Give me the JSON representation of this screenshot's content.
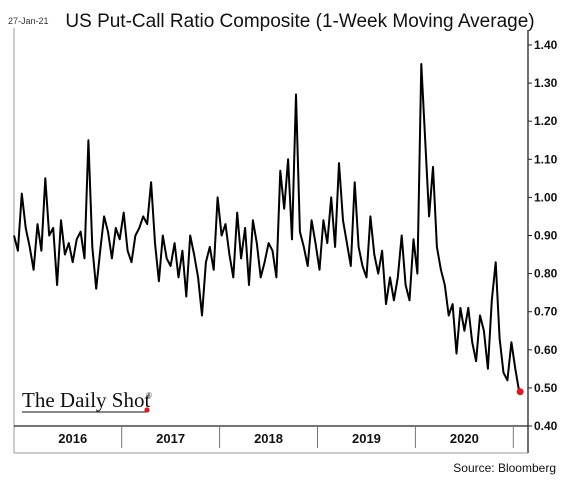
{
  "header": {
    "date": "27-Jan-21",
    "title": "US Put-Call Ratio Composite (1-Week Moving Average)"
  },
  "footer": {
    "source": "Source: Bloomberg"
  },
  "logo": {
    "text": "The Daily Shot",
    "mark": "®"
  },
  "colors": {
    "line": "#000000",
    "last_point": "#e8141c",
    "grid": "#999999"
  },
  "chart_data": {
    "type": "line",
    "title": "US Put-Call Ratio Composite (1-Week Moving Average)",
    "xlabel": "",
    "ylabel": "",
    "xlim": [
      2015.9,
      2021.15
    ],
    "ylim": [
      0.4,
      1.4
    ],
    "y_axis_side": "right",
    "grid": false,
    "yticks": [
      "1.40",
      "1.30",
      "1.20",
      "1.10",
      "1.00",
      "0.90",
      "0.80",
      "0.70",
      "0.60",
      "0.50",
      "0.40"
    ],
    "xticks": [
      {
        "label": "2016",
        "value": 2016
      },
      {
        "label": "2017",
        "value": 2017
      },
      {
        "label": "2018",
        "value": 2018
      },
      {
        "label": "2019",
        "value": 2019
      },
      {
        "label": "2020",
        "value": 2020
      }
    ],
    "series": [
      {
        "x": [
          2015.9,
          2015.94,
          2015.98,
          2016.02,
          2016.06,
          2016.1,
          2016.14,
          2016.18,
          2016.22,
          2016.26,
          2016.3,
          2016.34,
          2016.38,
          2016.42,
          2016.46,
          2016.5,
          2016.54,
          2016.58,
          2016.62,
          2016.66,
          2016.7,
          2016.74,
          2016.78,
          2016.82,
          2016.86,
          2016.9,
          2016.94,
          2016.98,
          2017.02,
          2017.06,
          2017.1,
          2017.14,
          2017.18,
          2017.22,
          2017.26,
          2017.3,
          2017.34,
          2017.38,
          2017.42,
          2017.46,
          2017.5,
          2017.54,
          2017.58,
          2017.62,
          2017.66,
          2017.7,
          2017.74,
          2017.78,
          2017.82,
          2017.86,
          2017.9,
          2017.94,
          2017.98,
          2018.02,
          2018.06,
          2018.1,
          2018.14,
          2018.18,
          2018.22,
          2018.26,
          2018.3,
          2018.34,
          2018.38,
          2018.42,
          2018.46,
          2018.5,
          2018.54,
          2018.58,
          2018.62,
          2018.66,
          2018.7,
          2018.74,
          2018.78,
          2018.82,
          2018.86,
          2018.9,
          2018.94,
          2018.98,
          2019.02,
          2019.06,
          2019.1,
          2019.14,
          2019.18,
          2019.22,
          2019.26,
          2019.3,
          2019.34,
          2019.38,
          2019.42,
          2019.46,
          2019.5,
          2019.54,
          2019.58,
          2019.62,
          2019.66,
          2019.7,
          2019.74,
          2019.78,
          2019.82,
          2019.86,
          2019.9,
          2019.94,
          2019.98,
          2020.02,
          2020.06,
          2020.1,
          2020.14,
          2020.18,
          2020.22,
          2020.26,
          2020.3,
          2020.34,
          2020.38,
          2020.42,
          2020.46,
          2020.5,
          2020.54,
          2020.58,
          2020.62,
          2020.66,
          2020.7,
          2020.74,
          2020.78,
          2020.82,
          2020.86,
          2020.9,
          2020.94,
          2020.98,
          2021.02,
          2021.06
        ],
        "y": [
          0.9,
          0.86,
          1.01,
          0.92,
          0.87,
          0.81,
          0.93,
          0.86,
          1.05,
          0.9,
          0.92,
          0.77,
          0.94,
          0.85,
          0.88,
          0.83,
          0.89,
          0.91,
          0.84,
          1.15,
          0.87,
          0.76,
          0.86,
          0.95,
          0.91,
          0.84,
          0.92,
          0.89,
          0.96,
          0.86,
          0.83,
          0.9,
          0.92,
          0.95,
          0.93,
          1.04,
          0.88,
          0.78,
          0.9,
          0.84,
          0.82,
          0.88,
          0.79,
          0.86,
          0.74,
          0.9,
          0.85,
          0.79,
          0.69,
          0.83,
          0.87,
          0.81,
          1.0,
          0.9,
          0.93,
          0.85,
          0.79,
          0.96,
          0.84,
          0.92,
          0.77,
          0.94,
          0.88,
          0.79,
          0.83,
          0.88,
          0.86,
          0.79,
          1.07,
          0.97,
          1.1,
          0.89,
          1.27,
          0.91,
          0.87,
          0.82,
          0.94,
          0.88,
          0.81,
          0.94,
          0.88,
          1.0,
          0.87,
          1.09,
          0.94,
          0.88,
          0.82,
          1.04,
          0.87,
          0.82,
          0.79,
          0.95,
          0.85,
          0.8,
          0.86,
          0.72,
          0.79,
          0.73,
          0.79,
          0.9,
          0.77,
          0.73,
          0.89,
          0.8,
          1.35,
          1.15,
          0.95,
          1.08,
          0.87,
          0.81,
          0.77,
          0.69,
          0.72,
          0.59,
          0.71,
          0.65,
          0.71,
          0.62,
          0.57,
          0.69,
          0.65,
          0.55,
          0.73,
          0.83,
          0.63,
          0.54,
          0.52,
          0.62,
          0.55,
          0.49
        ]
      }
    ],
    "last_point": {
      "x": 2021.07,
      "y": 0.49
    }
  }
}
